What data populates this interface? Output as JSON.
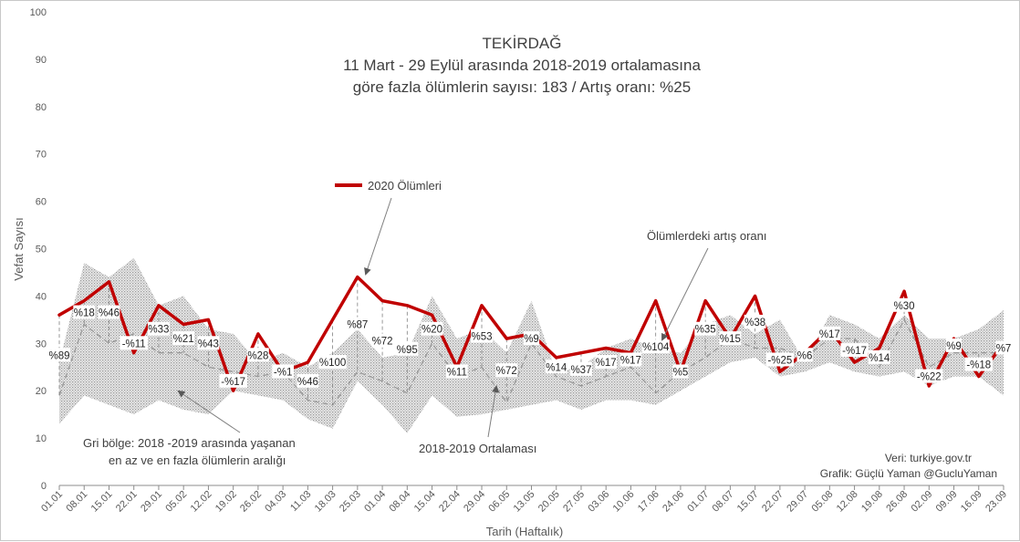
{
  "chart_data": {
    "type": "line",
    "title": [
      "TEKİRDAĞ",
      "11 Mart - 29 Eylül arasında 2018-2019 ortalamasına",
      "göre fazla ölümlerin sayısı: 183 / Artış oranı: %25"
    ],
    "xlabel": "Tarih (Haftalık)",
    "ylabel": "Vefat Sayısı",
    "ylim": [
      0,
      100
    ],
    "yticks": [
      0,
      10,
      20,
      30,
      40,
      50,
      60,
      70,
      80,
      90,
      100
    ],
    "categories": [
      "01.01",
      "08.01",
      "15.01",
      "22.01",
      "29.01",
      "05.02",
      "12.02",
      "19.02",
      "26.02",
      "04.03",
      "11.03",
      "18.03",
      "25.03",
      "01.04",
      "08.04",
      "15.04",
      "22.04",
      "29.04",
      "06.05",
      "13.05",
      "20.05",
      "27.05",
      "03.06",
      "10.06",
      "17.06",
      "24.06",
      "01.07",
      "08.07",
      "15.07",
      "22.07",
      "29.07",
      "05.08",
      "12.08",
      "19.08",
      "26.08",
      "02.09",
      "09.09",
      "16.09",
      "23.09"
    ],
    "series": [
      {
        "name": "2020 Ölümleri",
        "color": "#c00000",
        "values": [
          36,
          39,
          43,
          28,
          38,
          34,
          35,
          20,
          32,
          24,
          26,
          35,
          44,
          39,
          38,
          36,
          25,
          38,
          31,
          32,
          27,
          28,
          29,
          28,
          39,
          24,
          39,
          31,
          40,
          24,
          28,
          33,
          26,
          29,
          41,
          21,
          31,
          23,
          30
        ]
      },
      {
        "name": "2018-2019 Ortalaması",
        "color": "#999999",
        "values": [
          19,
          34,
          30,
          32,
          28,
          28,
          25,
          24,
          23,
          24,
          18,
          17,
          24,
          22,
          19.5,
          30,
          23,
          25,
          17.5,
          30,
          23,
          21,
          23,
          25,
          19.5,
          24,
          27,
          31,
          29,
          29,
          27,
          31,
          31,
          25,
          35,
          25,
          28,
          28,
          28
        ]
      }
    ],
    "range_band": {
      "name": "Gri bölge: 2018 -2019 arasında yaşanan en az ve en fazla ölümlerin aralığı",
      "color": "#bfbfbf",
      "min": [
        13,
        19,
        17,
        15,
        18,
        16,
        15,
        20,
        19,
        18,
        14,
        12,
        22,
        17,
        11,
        19,
        14.5,
        15,
        16,
        17,
        18,
        16,
        18,
        18,
        17,
        20,
        23,
        26,
        27,
        23,
        24,
        26,
        24,
        23,
        24,
        21,
        23,
        23,
        19
      ],
      "max": [
        26,
        47,
        44,
        48,
        38,
        40,
        33,
        32,
        26,
        28,
        25,
        28,
        33,
        27,
        28,
        40,
        31,
        33,
        28,
        39,
        24,
        25,
        29,
        31,
        29,
        28,
        34,
        36,
        32,
        35,
        26,
        36,
        34,
        31,
        36,
        31,
        31,
        33,
        37
      ]
    },
    "data_labels": [
      "%89",
      "%18",
      "%46",
      "-%11",
      "%33",
      "%21",
      "%43",
      "-%17",
      "%28",
      "-%1",
      "%46",
      "%100",
      "%87",
      "%72",
      "%95",
      "%20",
      "%11",
      "%53",
      "%72",
      "%9",
      "%14",
      "%37",
      "%17",
      "%17",
      "%104",
      "%5",
      "%35",
      "%15",
      "%38",
      "-%25",
      "%6",
      "%17",
      "-%17",
      "%14",
      "%30",
      "-%22",
      "%9",
      "-%18",
      "%7"
    ],
    "annotations": {
      "legend_line": "2020 Ölümleri",
      "increase_rate": "Ölümlerdeki artış oranı",
      "average": "2018-2019 Ortalaması",
      "band_line1": "Gri bölge: 2018 -2019 arasında yaşanan",
      "band_line2": "en az ve en fazla ölümlerin aralığı"
    },
    "source": [
      "Veri: turkiye.gov.tr",
      "Grafik: Güçlü Yaman @GucluYaman"
    ],
    "grid": false,
    "legend": "inline"
  }
}
